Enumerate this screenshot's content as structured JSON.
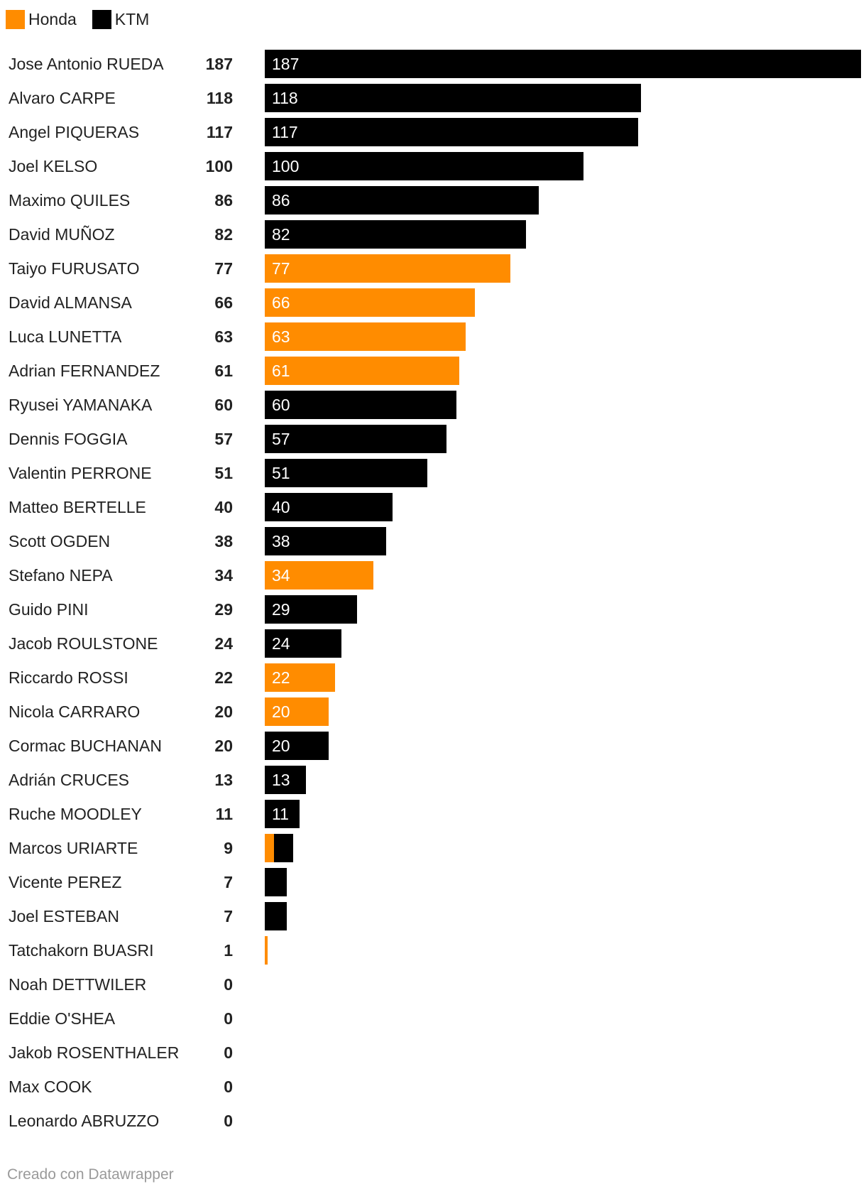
{
  "colors": {
    "honda": "#ff8c00",
    "ktm": "#000000"
  },
  "legend": [
    {
      "label": "Honda",
      "color": "#ff8c00"
    },
    {
      "label": "KTM",
      "color": "#000000"
    }
  ],
  "footer": "Creado con Datawrapper",
  "chart_data": {
    "type": "bar",
    "orientation": "horizontal",
    "stacked": true,
    "xlim": [
      0,
      187
    ],
    "series": [
      {
        "name": "Honda",
        "color": "#ff8c00",
        "values": [
          0,
          0,
          0,
          0,
          0,
          0,
          77,
          66,
          63,
          61,
          0,
          0,
          0,
          0,
          0,
          34,
          0,
          0,
          22,
          20,
          0,
          0,
          0,
          3,
          0,
          0,
          1,
          0,
          0,
          0,
          0,
          0
        ]
      },
      {
        "name": "KTM",
        "color": "#000000",
        "values": [
          187,
          118,
          117,
          100,
          86,
          82,
          0,
          0,
          0,
          0,
          60,
          57,
          51,
          40,
          38,
          0,
          29,
          24,
          0,
          0,
          20,
          13,
          11,
          6,
          7,
          7,
          0,
          0,
          0,
          0,
          0,
          0
        ]
      }
    ],
    "categories": [
      "Jose Antonio RUEDA",
      "Alvaro CARPE",
      "Angel PIQUERAS",
      "Joel KELSO",
      "Maximo QUILES",
      "David MUÑOZ",
      "Taiyo FURUSATO",
      "David ALMANSA",
      "Luca LUNETTA",
      "Adrian FERNANDEZ",
      "Ryusei YAMANAKA",
      "Dennis FOGGIA",
      "Valentin PERRONE",
      "Matteo BERTELLE",
      "Scott OGDEN",
      "Stefano NEPA",
      "Guido PINI",
      "Jacob ROULSTONE",
      "Riccardo ROSSI",
      "Nicola CARRARO",
      "Cormac BUCHANAN",
      "Adrián CRUCES",
      "Ruche MOODLEY",
      "Marcos URIARTE",
      "Vicente PEREZ",
      "Joel ESTEBAN",
      "Tatchakorn BUASRI",
      "Noah DETTWILER",
      "Eddie O'SHEA",
      "Jakob ROSENTHALER",
      "Max COOK",
      "Leonardo ABRUZZO"
    ],
    "totals": [
      187,
      118,
      117,
      100,
      86,
      82,
      77,
      66,
      63,
      61,
      60,
      57,
      51,
      40,
      38,
      34,
      29,
      24,
      22,
      20,
      20,
      13,
      11,
      9,
      7,
      7,
      1,
      0,
      0,
      0,
      0,
      0
    ],
    "bar_labels": [
      "187",
      "118",
      "117",
      "100",
      "86",
      "82",
      "77",
      "66",
      "63",
      "61",
      "60",
      "57",
      "51",
      "40",
      "38",
      "34",
      "29",
      "24",
      "22",
      "20",
      "20",
      "13",
      "11",
      "",
      "",
      "",
      "",
      "",
      "",
      "",
      "",
      ""
    ]
  }
}
